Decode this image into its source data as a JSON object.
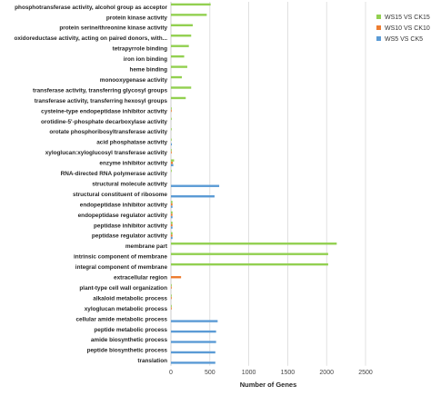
{
  "chart_data": {
    "type": "bar",
    "orientation": "horizontal",
    "xlabel": "Number of Genes",
    "xlim": [
      0,
      2500
    ],
    "xticks": [
      0,
      500,
      1000,
      1500,
      2000,
      2500
    ],
    "grid": true,
    "legend_position": "top-right",
    "categories": [
      "phosphotransferase activity, alcohol group as acceptor",
      "protein kinase activity",
      "protein serine/threonine kinase activity",
      "oxidoreductase activity, acting on paired donors, with...",
      "tetrapyrrole binding",
      "iron ion binding",
      "heme binding",
      "monooxygenase activity",
      "transferase activity, transferring glycosyl groups",
      "transferase activity, transferring hexosyl groups",
      "cysteine-type endopeptidase inhibitor activity",
      "orotidine-5'-phosphate decarboxylase activity",
      "orotate phosphoribosyltransferase activity",
      "acid phosphatase activity",
      "xyloglucan:xyloglucosyl transferase activity",
      "enzyme inhibitor activity",
      "RNA-directed RNA polymerase activity",
      "structural molecule activity",
      "structural constituent of ribosome",
      "endopeptidase inhibitor activity",
      "endopeptidase regulator activity",
      "peptidase inhibitor activity",
      "peptidase regulator activity",
      "membrane part",
      "intrinsic component of membrane",
      "integral component of membrane",
      "extracellular region",
      "plant-type cell wall organization",
      "alkaloid metabolic process",
      "xyloglucan metabolic process",
      "cellular amide metabolic process",
      "peptide metabolic process",
      "amide biosynthetic process",
      "peptide biosynthetic process",
      "translation"
    ],
    "series": [
      {
        "name": "WS15 VS CK15",
        "color": "#92d050",
        "values": [
          510,
          460,
          280,
          260,
          230,
          170,
          210,
          140,
          260,
          190,
          5,
          3,
          3,
          3,
          3,
          40,
          3,
          0,
          0,
          20,
          20,
          20,
          20,
          2130,
          2020,
          2020,
          0,
          3,
          3,
          3,
          0,
          0,
          0,
          0,
          0
        ]
      },
      {
        "name": "WS10 VS CK10",
        "color": "#ed7d31",
        "values": [
          0,
          0,
          0,
          0,
          0,
          0,
          0,
          0,
          0,
          0,
          3,
          0,
          0,
          0,
          8,
          25,
          0,
          0,
          0,
          20,
          20,
          20,
          20,
          0,
          0,
          0,
          130,
          5,
          5,
          5,
          0,
          0,
          0,
          0,
          0
        ]
      },
      {
        "name": "WS5 VS CK5",
        "color": "#5b9bd5",
        "values": [
          0,
          0,
          0,
          0,
          0,
          0,
          0,
          0,
          0,
          0,
          0,
          0,
          0,
          12,
          0,
          30,
          0,
          620,
          560,
          20,
          20,
          20,
          20,
          0,
          0,
          0,
          0,
          0,
          0,
          0,
          600,
          580,
          580,
          570,
          570
        ]
      }
    ]
  }
}
